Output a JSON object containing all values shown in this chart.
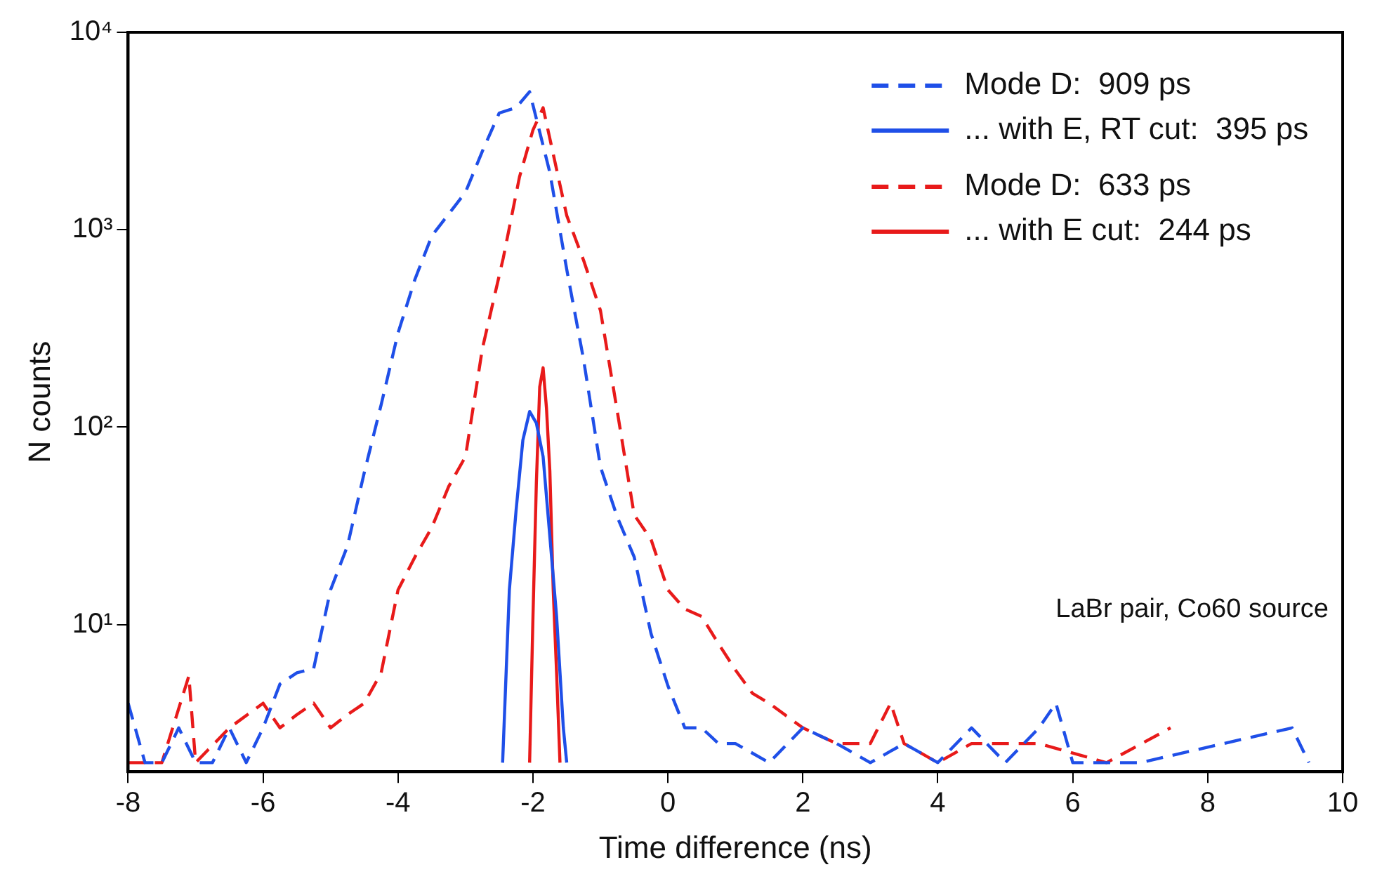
{
  "chart_data": {
    "type": "line",
    "xlabel": "Time difference (ns)",
    "ylabel": "N counts",
    "xlim": [
      -8,
      10
    ],
    "xticks": [
      -8,
      -6,
      -4,
      -2,
      0,
      2,
      4,
      6,
      8,
      10
    ],
    "ylim": [
      1.8,
      10000
    ],
    "yticks": [
      {
        "value": 10,
        "label": "10¹"
      },
      {
        "value": 100,
        "label": "10²"
      },
      {
        "value": 1000,
        "label": "10³"
      },
      {
        "value": 10000,
        "label": "10⁴"
      }
    ],
    "log": "y",
    "grid": false,
    "legend": "top right",
    "marker": "none",
    "annotations": [
      "LaBr pair, Co60 source"
    ],
    "series": [
      {
        "name": "Mode D:  909 ps",
        "color": "#1f4fe8",
        "line_style": "dashed",
        "x": [
          -8,
          -7.75,
          -7.5,
          -7.25,
          -7,
          -6.75,
          -6.5,
          -6.25,
          -6,
          -5.75,
          -5.5,
          -5.25,
          -5,
          -4.75,
          -4.5,
          -4.25,
          -4,
          -3.75,
          -3.5,
          -3.25,
          -3,
          -2.75,
          -2.5,
          -2.25,
          -2.05,
          -1.75,
          -1.5,
          -1.25,
          -1,
          -0.75,
          -0.5,
          -0.25,
          0,
          0.25,
          0.5,
          0.75,
          1,
          1.5,
          2,
          2.5,
          3,
          3.5,
          4,
          4.5,
          5,
          5.5,
          5.75,
          6,
          7,
          9.25,
          9.5
        ],
        "values": [
          4,
          2,
          2,
          3,
          2,
          2,
          3,
          2,
          3,
          5,
          5.7,
          6,
          15,
          25,
          59,
          130,
          300,
          560,
          930,
          1200,
          1550,
          2500,
          3900,
          4150,
          5000,
          1950,
          630,
          220,
          63,
          35,
          22,
          9,
          4.9,
          3,
          3,
          2.5,
          2.5,
          2,
          3,
          2.5,
          2,
          2.5,
          2,
          3,
          2,
          3,
          4,
          2,
          2,
          3,
          2
        ]
      },
      {
        "name": "... with E, RT cut:  395 ps",
        "color": "#1f4fe8",
        "line_style": "solid",
        "x": [
          -2.45,
          -2.35,
          -2.25,
          -2.15,
          -2.05,
          -1.95,
          -1.85,
          -1.75,
          -1.65,
          -1.55,
          -1.5
        ],
        "values": [
          2,
          15,
          38,
          86,
          120,
          105,
          71,
          28,
          11,
          3,
          2
        ]
      },
      {
        "name": "Mode D:  633 ps",
        "color": "#e81a1a",
        "line_style": "dashed",
        "x": [
          -8,
          -7.5,
          -7.1,
          -7,
          -6.5,
          -6,
          -5.75,
          -5.5,
          -5.25,
          -5,
          -4.75,
          -4.5,
          -4.25,
          -4,
          -3.75,
          -3.5,
          -3.25,
          -3,
          -2.75,
          -2.44,
          -2.2,
          -2.0,
          -1.85,
          -1.5,
          -1.25,
          -1,
          -0.75,
          -0.5,
          -0.25,
          0,
          0.25,
          0.5,
          0.75,
          1,
          1.25,
          1.5,
          2,
          2.5,
          3,
          3.3,
          3.5,
          4,
          4.5,
          5.5,
          6.5,
          7.45
        ],
        "values": [
          2,
          2,
          5.5,
          2,
          3,
          4,
          3,
          3.5,
          4,
          3,
          3.5,
          4,
          5.7,
          15,
          22,
          31,
          50,
          71,
          250,
          720,
          1850,
          3200,
          4150,
          1180,
          700,
          390,
          120,
          36,
          27,
          15,
          12,
          11,
          8,
          5.9,
          4.5,
          4,
          3,
          2.5,
          2.5,
          4,
          2.5,
          2,
          2.5,
          2.5,
          2,
          3
        ]
      },
      {
        "name": "... with E cut:  244 ps",
        "color": "#e81a1a",
        "line_style": "solid",
        "x": [
          -2.05,
          -2.0,
          -1.95,
          -1.9,
          -1.85,
          -1.8,
          -1.75,
          -1.7,
          -1.65,
          -1.6
        ],
        "values": [
          2,
          11,
          52,
          160,
          200,
          125,
          60,
          15,
          5.7,
          2
        ]
      }
    ]
  }
}
